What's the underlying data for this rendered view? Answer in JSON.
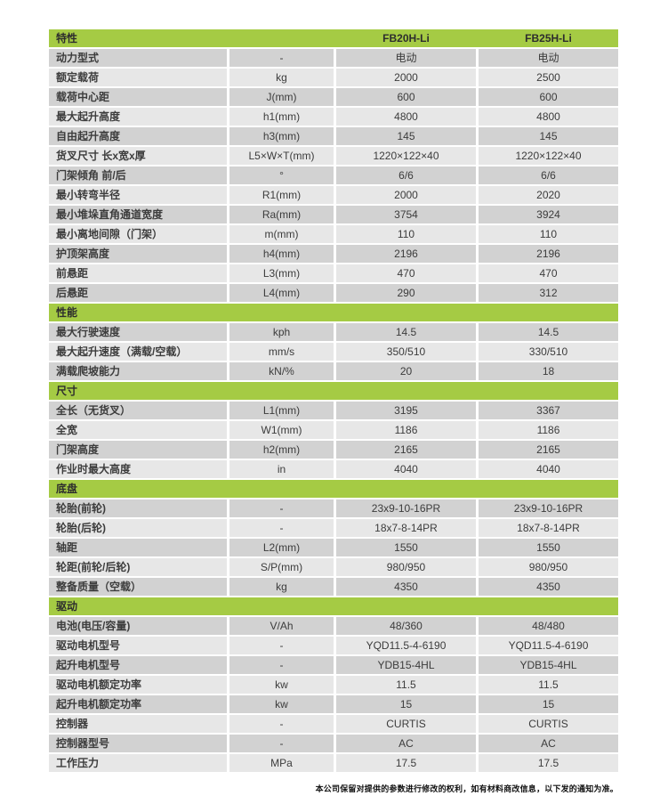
{
  "colors": {
    "accent_green": "#a5cb44",
    "row_dark": "#d2d2d2",
    "row_light": "#e7e7e7",
    "header_text": "#2d2d2d",
    "body_text": "#3c3c3c"
  },
  "table": {
    "header": {
      "feature_label": "特性",
      "unit_label": "",
      "model1": "FB20H-Li",
      "model2": "FB25H-Li"
    },
    "sections": [
      {
        "title": null,
        "rows": [
          {
            "label": "动力型式",
            "unit": "-",
            "fb20": "电动",
            "fb25": "电动"
          },
          {
            "label": "额定载荷",
            "unit": "kg",
            "fb20": "2000",
            "fb25": "2500"
          },
          {
            "label": "载荷中心距",
            "unit": "J(mm)",
            "fb20": "600",
            "fb25": "600"
          },
          {
            "label": "最大起升高度",
            "unit": "h1(mm)",
            "fb20": "4800",
            "fb25": "4800"
          },
          {
            "label": "自由起升高度",
            "unit": "h3(mm)",
            "fb20": "145",
            "fb25": "145"
          },
          {
            "label": "货叉尺寸 长x宽x厚",
            "unit": "L5×W×T(mm)",
            "fb20": "1220×122×40",
            "fb25": "1220×122×40"
          },
          {
            "label": "门架倾角 前/后",
            "unit": "°",
            "fb20": "6/6",
            "fb25": "6/6"
          },
          {
            "label": "最小转弯半径",
            "unit": "R1(mm)",
            "fb20": "2000",
            "fb25": "2020"
          },
          {
            "label": "最小堆垛直角通道宽度",
            "unit": "Ra(mm)",
            "fb20": "3754",
            "fb25": "3924"
          },
          {
            "label": "最小离地间隙（门架）",
            "unit": "m(mm)",
            "fb20": "110",
            "fb25": "110"
          },
          {
            "label": "护顶架高度",
            "unit": "h4(mm)",
            "fb20": "2196",
            "fb25": "2196"
          },
          {
            "label": "前悬距",
            "unit": "L3(mm)",
            "fb20": "470",
            "fb25": "470"
          },
          {
            "label": "后悬距",
            "unit": "L4(mm)",
            "fb20": "290",
            "fb25": "312"
          }
        ]
      },
      {
        "title": "性能",
        "rows": [
          {
            "label": "最大行驶速度",
            "unit": "kph",
            "fb20": "14.5",
            "fb25": "14.5"
          },
          {
            "label": "最大起升速度（满载/空载）",
            "unit": "mm/s",
            "fb20": "350/510",
            "fb25": "330/510"
          },
          {
            "label": "满载爬坡能力",
            "unit": "kN/%",
            "fb20": "20",
            "fb25": "18"
          }
        ]
      },
      {
        "title": "尺寸",
        "rows": [
          {
            "label": "全长（无货叉）",
            "unit": "L1(mm)",
            "fb20": "3195",
            "fb25": "3367"
          },
          {
            "label": "全宽",
            "unit": "W1(mm)",
            "fb20": "1186",
            "fb25": "1186"
          },
          {
            "label": "门架高度",
            "unit": "h2(mm)",
            "fb20": "2165",
            "fb25": "2165"
          },
          {
            "label": "作业时最大高度",
            "unit": "in",
            "fb20": "4040",
            "fb25": "4040"
          }
        ]
      },
      {
        "title": "底盘",
        "rows": [
          {
            "label": "轮胎(前轮)",
            "unit": "-",
            "fb20": "23x9-10-16PR",
            "fb25": "23x9-10-16PR"
          },
          {
            "label": "轮胎(后轮)",
            "unit": "-",
            "fb20": "18x7-8-14PR",
            "fb25": "18x7-8-14PR"
          },
          {
            "label": "轴距",
            "unit": "L2(mm)",
            "fb20": "1550",
            "fb25": "1550"
          },
          {
            "label": "轮距(前轮/后轮)",
            "unit": "S/P(mm)",
            "fb20": "980/950",
            "fb25": "980/950"
          },
          {
            "label": "整备质量（空载）",
            "unit": "kg",
            "fb20": "4350",
            "fb25": "4350"
          }
        ]
      },
      {
        "title": "驱动",
        "rows": [
          {
            "label": "电池(电压/容量)",
            "unit": "V/Ah",
            "fb20": "48/360",
            "fb25": "48/480"
          },
          {
            "label": "驱动电机型号",
            "unit": "-",
            "fb20": "YQD11.5-4-6190",
            "fb25": "YQD11.5-4-6190"
          },
          {
            "label": "起升电机型号",
            "unit": "-",
            "fb20": "YDB15-4HL",
            "fb25": "YDB15-4HL"
          },
          {
            "label": "驱动电机额定功率",
            "unit": "kw",
            "fb20": "11.5",
            "fb25": "11.5"
          },
          {
            "label": "起升电机额定功率",
            "unit": "kw",
            "fb20": "15",
            "fb25": "15"
          },
          {
            "label": "控制器",
            "unit": "-",
            "fb20": "CURTIS",
            "fb25": "CURTIS"
          },
          {
            "label": "控制器型号",
            "unit": "-",
            "fb20": "AC",
            "fb25": "AC"
          },
          {
            "label": "工作压力",
            "unit": "MPa",
            "fb20": "17.5",
            "fb25": "17.5"
          }
        ]
      }
    ]
  },
  "footer": {
    "note": "本公司保留对提供的参数进行修改的权利，如有材料商改信息，以下发的通知为准。"
  }
}
